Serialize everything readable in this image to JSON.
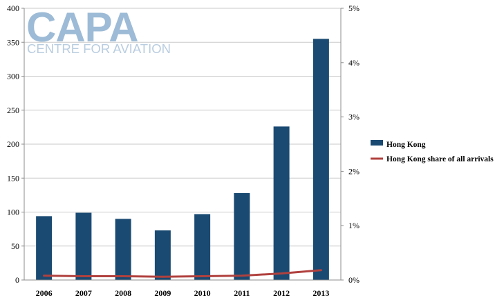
{
  "logo": {
    "name": "CAPA",
    "tagline": "CENTRE FOR AVIATION"
  },
  "chart_data": {
    "type": "bar",
    "categories": [
      "2006",
      "2007",
      "2008",
      "2009",
      "2010",
      "2011",
      "2012",
      "2013"
    ],
    "series": [
      {
        "name": "Hong Kong",
        "type": "bar",
        "axis": "left",
        "color": "#1a4a72",
        "values": [
          94,
          99,
          90,
          73,
          97,
          128,
          226,
          355
        ]
      },
      {
        "name": "Hong Kong share of all arrivals",
        "type": "line",
        "axis": "right",
        "color": "#b0413e",
        "values": [
          0.08,
          0.07,
          0.07,
          0.06,
          0.07,
          0.08,
          0.12,
          0.18
        ]
      }
    ],
    "y_left": {
      "range": [
        0,
        400
      ],
      "ticks": [
        "0",
        "50",
        "100",
        "150",
        "200",
        "250",
        "300",
        "350",
        "400"
      ]
    },
    "y_right": {
      "unit": "%",
      "range": [
        0,
        5
      ],
      "ticks": [
        "0%",
        "1%",
        "2%",
        "3%",
        "4%",
        "5%"
      ]
    },
    "grid": true,
    "legend": "right"
  }
}
